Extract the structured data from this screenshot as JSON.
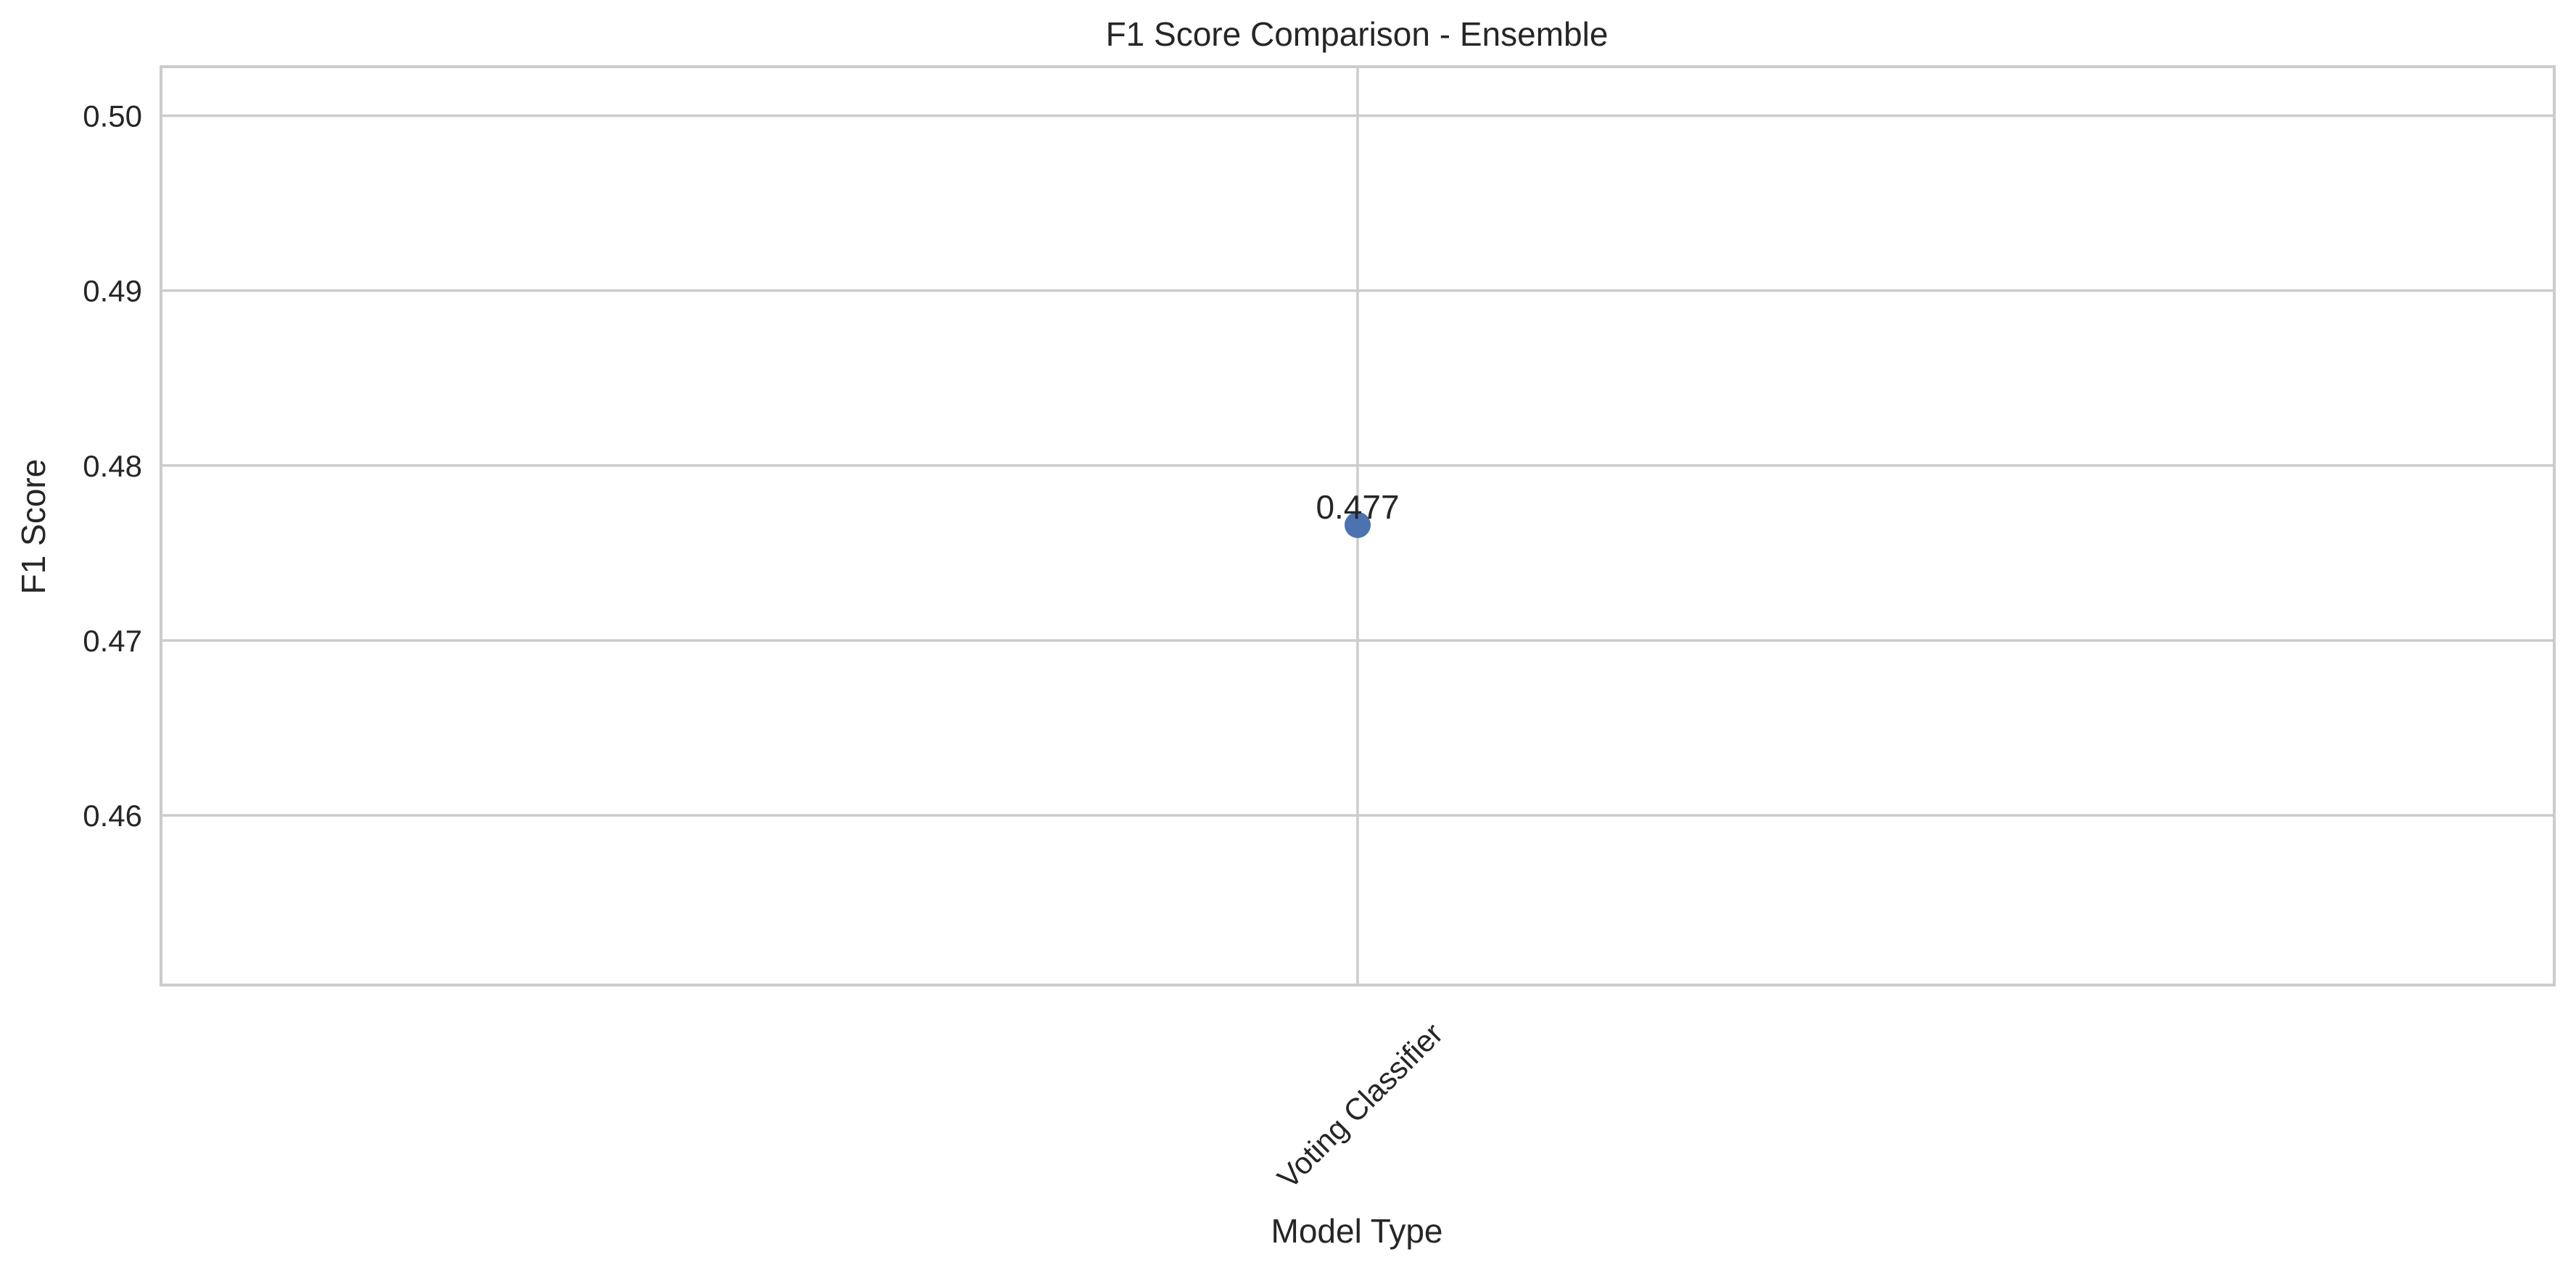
{
  "chart_data": {
    "type": "scatter",
    "title": "F1 Score Comparison - Ensemble",
    "xlabel": "Model Type",
    "ylabel": "F1 Score",
    "categories": [
      "Voting Classifier"
    ],
    "series": [
      {
        "values": [
          0.4766
        ],
        "labels": [
          "0.477"
        ]
      }
    ],
    "ylim": [
      0.4503,
      0.5028
    ],
    "yticks": [
      0.46,
      0.47,
      0.48,
      0.49,
      0.5
    ],
    "ytick_labels": [
      "0.46",
      "0.47",
      "0.48",
      "0.49",
      "0.50"
    ],
    "grid": true,
    "legend": "none",
    "colors": {
      "marker": "#4c72b0",
      "grid": "#cccccc",
      "text": "#262626"
    }
  }
}
